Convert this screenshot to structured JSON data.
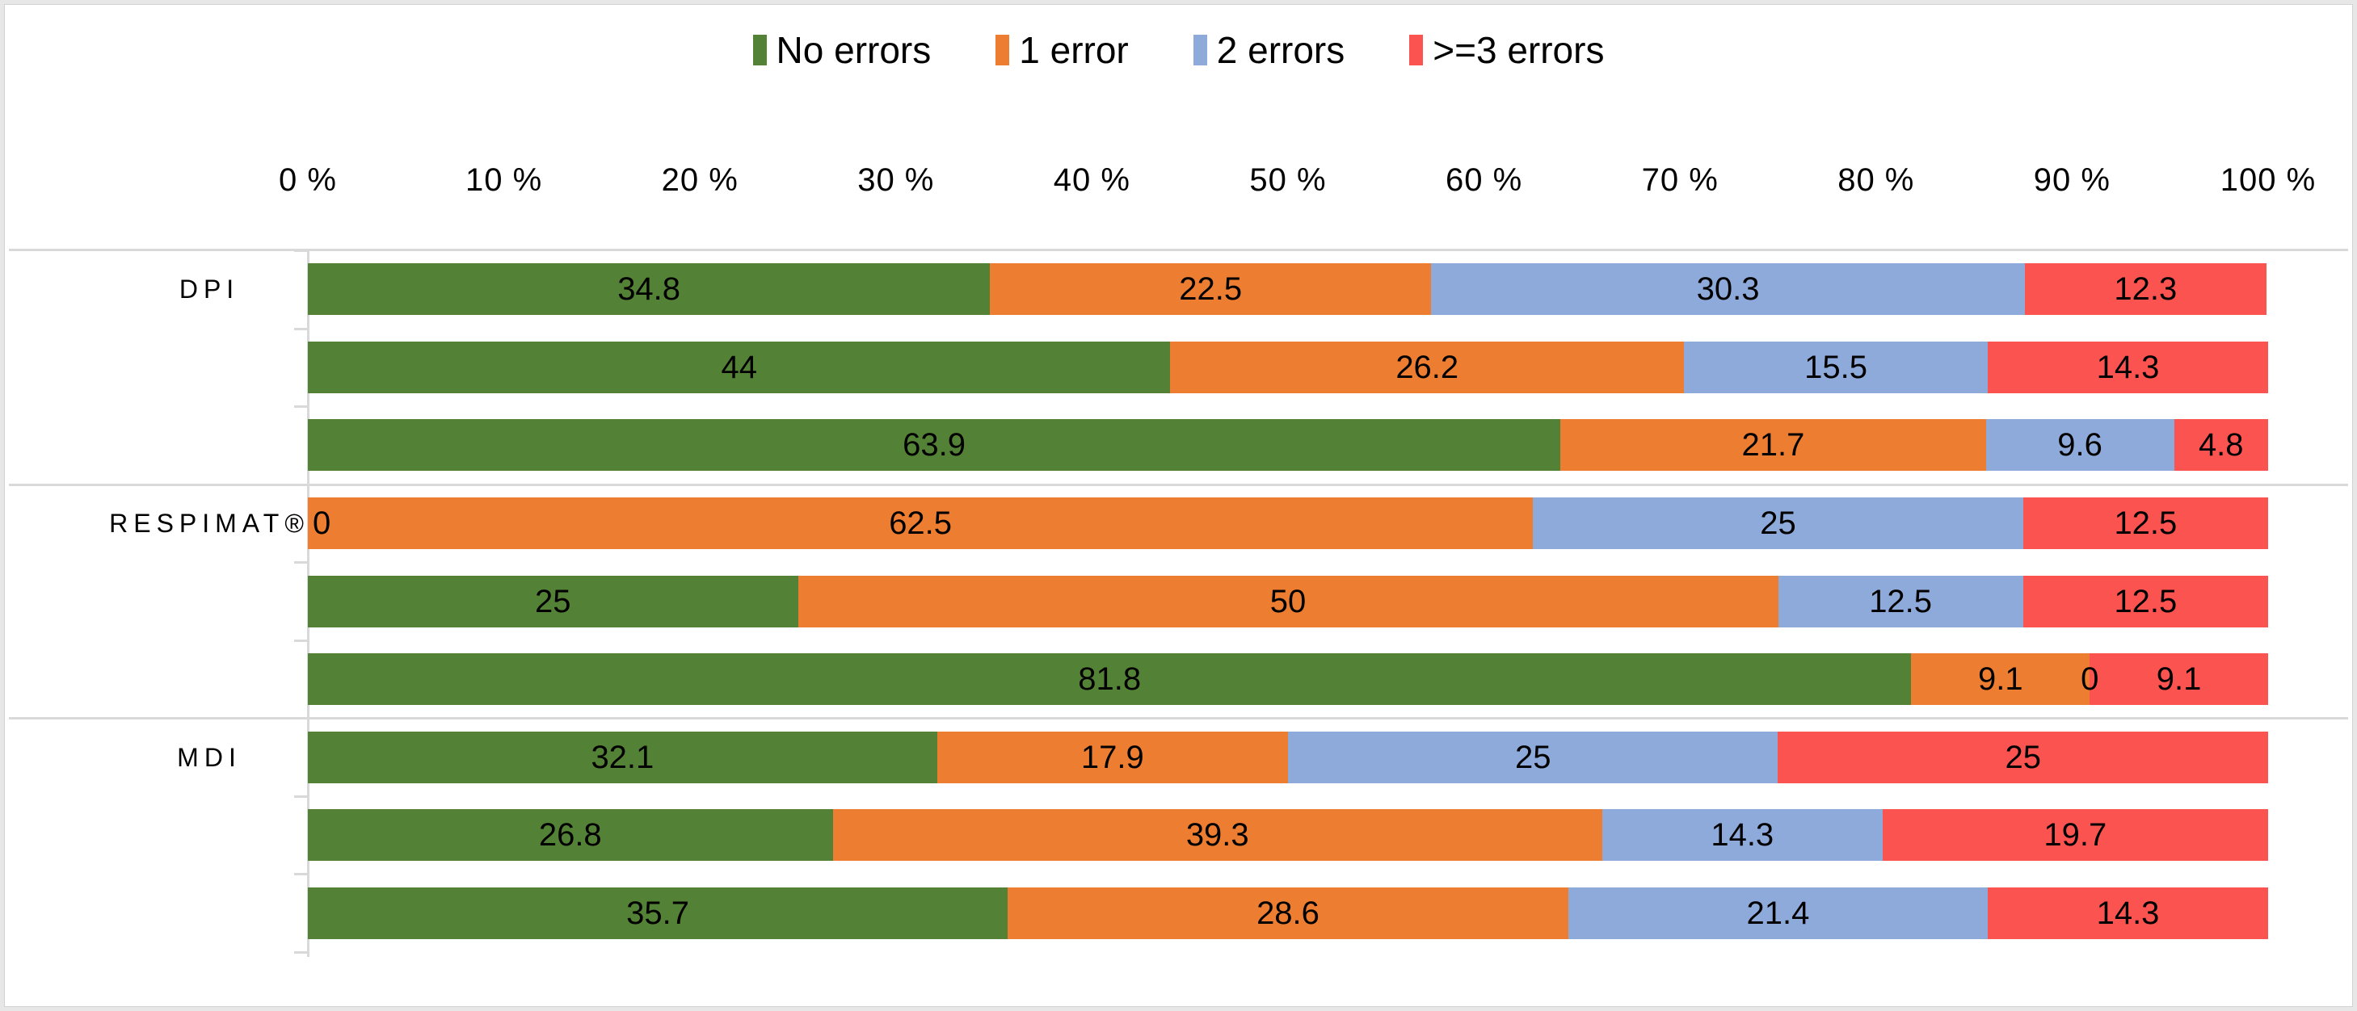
{
  "chart_data": {
    "type": "bar",
    "variant": "horizontal-stacked",
    "title": "",
    "xlabel": "",
    "ylabel": "",
    "x_range": [
      0,
      100
    ],
    "grid": "category-group-separators",
    "legend_position": "top-center",
    "legend": [
      {
        "name": "No errors",
        "color": "#538135"
      },
      {
        "name": "1 error",
        "color": "#ED7D31"
      },
      {
        "name": "2 errors",
        "color": "#8EAADB"
      },
      {
        "name": ">=3 errors",
        "color": "#FB5350"
      }
    ],
    "x_ticks": [
      "0 %",
      "10 %",
      "20 %",
      "30 %",
      "40 %",
      "50 %",
      "60 %",
      "70 %",
      "80 %",
      "90 %",
      "100 %"
    ],
    "groups": [
      {
        "label": "DPI",
        "bars": [
          {
            "values": [
              34.8,
              22.5,
              30.3,
              12.3
            ],
            "labels": [
              "34.8",
              "22.5",
              "30.3",
              "12.3"
            ]
          },
          {
            "values": [
              44,
              26.2,
              15.5,
              14.3
            ],
            "labels": [
              "44",
              "26.2",
              "15.5",
              "14.3"
            ]
          },
          {
            "values": [
              63.9,
              21.7,
              9.6,
              4.8
            ],
            "labels": [
              "63.9",
              "21.7",
              "9.6",
              "4.8"
            ]
          }
        ]
      },
      {
        "label": "RESPIMAT®",
        "bars": [
          {
            "values": [
              0,
              62.5,
              25,
              12.5
            ],
            "labels": [
              "0",
              "62.5",
              "25",
              "12.5"
            ]
          },
          {
            "values": [
              25,
              50,
              12.5,
              12.5
            ],
            "labels": [
              "25",
              "50",
              "12.5",
              "12.5"
            ]
          },
          {
            "values": [
              81.8,
              9.1,
              0,
              9.1
            ],
            "labels": [
              "81.8",
              "9.1",
              "0",
              "9.1"
            ]
          }
        ]
      },
      {
        "label": "MDI",
        "bars": [
          {
            "values": [
              32.1,
              17.9,
              25,
              25
            ],
            "labels": [
              "32.1",
              "17.9",
              "25",
              "25"
            ]
          },
          {
            "values": [
              26.8,
              39.3,
              14.3,
              19.7
            ],
            "labels": [
              "26.8",
              "39.3",
              "14.3",
              "19.7"
            ]
          },
          {
            "values": [
              35.7,
              28.6,
              21.4,
              14.3
            ],
            "labels": [
              "35.7",
              "28.6",
              "21.4",
              "14.3"
            ]
          }
        ]
      }
    ],
    "colors": {
      "grid_line": "#d9d9d9",
      "text": "#000000"
    }
  }
}
